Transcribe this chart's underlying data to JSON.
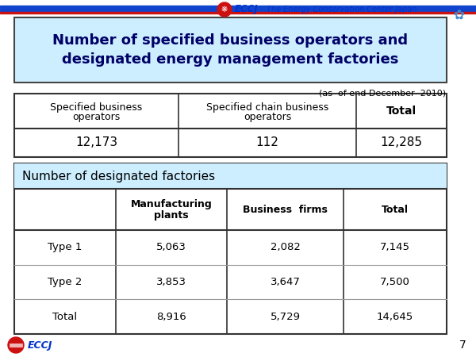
{
  "title_line1": "Number of specified business operators and",
  "title_line2": "designated energy management factories",
  "title_bg": "#cceeff",
  "date_note": "(as  of end December  2010)",
  "table1_headers": [
    "Specified business\noperators",
    "Specified chain business\noperators",
    "Total"
  ],
  "table1_values": [
    "12,173",
    "112",
    "12,285"
  ],
  "table2_title": "Number of designated factories",
  "table2_headers": [
    "",
    "Manufacturing\nplants",
    "Business  firms",
    "Total"
  ],
  "table2_rows": [
    [
      "Type 1",
      "5,063",
      "2,082",
      "7,145"
    ],
    [
      "Type 2",
      "3,853",
      "3,647",
      "7,500"
    ],
    [
      "Total",
      "8,916",
      "5,729",
      "14,645"
    ]
  ],
  "eccj_text": "ECCJ",
  "eccj_color": "#0033cc",
  "page_num": "7",
  "bg_color": "#ffffff",
  "top_bar_blue": "#1144cc",
  "top_bar_red": "#cc1111",
  "title_text_color": "#000066",
  "table2_title_bg": "#cceeff"
}
